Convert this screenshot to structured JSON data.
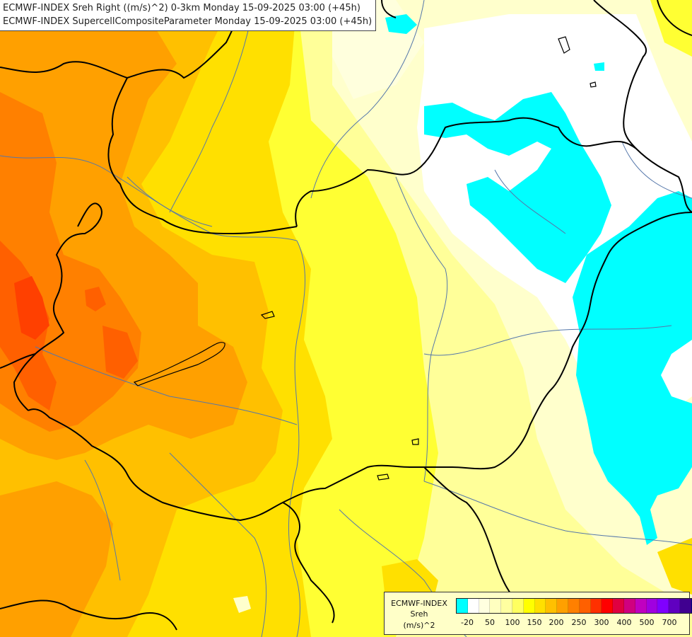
{
  "header": {
    "line1": "ECMWF-INDEX Sreh Right ((m/s)^2) 0-3km Monday 15-09-2025 03:00 (+45h)",
    "line2": "ECMWF-INDEX SupercellCompositeParameter Monday 15-09-2025 03:00 (+45h)"
  },
  "legend": {
    "title_line1": "ECMWF-INDEX",
    "title_line2": "Sreh",
    "unit": "(m/s)^2",
    "colors": [
      "#00ffff",
      "#ffffff",
      "#ffffe0",
      "#ffffc0",
      "#ffffa0",
      "#ffff60",
      "#ffff00",
      "#ffe000",
      "#ffc000",
      "#ffa000",
      "#ff8000",
      "#ff6000",
      "#ff3000",
      "#ff0000",
      "#e00040",
      "#d00080",
      "#c000c0",
      "#a000e0",
      "#8000ff",
      "#6000c0",
      "#400090",
      "#000080"
    ],
    "tick_labels": [
      "-20",
      "50",
      "100",
      "150",
      "200",
      "250",
      "300",
      "400",
      "500",
      "700"
    ]
  },
  "colors": {
    "cyan": "#00ffff",
    "pale": "#ffffc0",
    "light_yellow": "#ffff99",
    "yellow": "#ffff00",
    "gold": "#ffe000",
    "amber": "#ffc000",
    "orange": "#ffa000",
    "dark_orange": "#ff8000",
    "red_orange": "#ff4000",
    "border": "#000000",
    "river": "#5577aa"
  }
}
